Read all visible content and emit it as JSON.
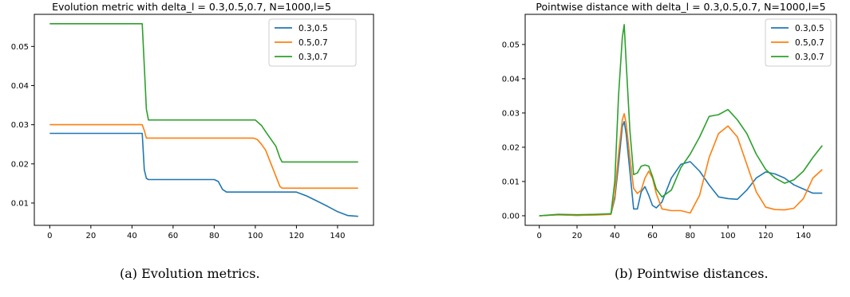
{
  "colors": {
    "series": [
      "#1f77b4",
      "#ff7f0e",
      "#2ca02c"
    ],
    "axis": "#000000",
    "legend_border": "#cccccc"
  },
  "captions": {
    "a": "(a) Evolution metrics.",
    "b": "(b) Pointwise distances."
  },
  "chart_data": [
    {
      "type": "line",
      "title": "Evolution metric with delta_l = 0.3,0.5,0.7, N=1000,l=5",
      "xlabel": "",
      "ylabel": "",
      "xlim": [
        -7.5,
        157.5
      ],
      "ylim": [
        0.0043,
        0.0582
      ],
      "xticks": [
        0,
        20,
        40,
        60,
        80,
        100,
        120,
        140
      ],
      "xtick_labels": [
        "0",
        "20",
        "40",
        "60",
        "80",
        "100",
        "120",
        "140"
      ],
      "yticks": [
        0.01,
        0.02,
        0.03,
        0.04,
        0.05
      ],
      "ytick_labels": [
        "0.01",
        "0.02",
        "0.03",
        "0.04",
        "0.05"
      ],
      "grid": false,
      "legend": "top-right",
      "series": [
        {
          "name": "0.3,0.5",
          "x": [
            0,
            45,
            46,
            47,
            48,
            80,
            82,
            84,
            86,
            120,
            125,
            130,
            135,
            140,
            145,
            150
          ],
          "y": [
            0.0278,
            0.0278,
            0.0185,
            0.0163,
            0.016,
            0.016,
            0.0155,
            0.0135,
            0.0128,
            0.0128,
            0.0118,
            0.0105,
            0.0092,
            0.0078,
            0.0068,
            0.0066
          ]
        },
        {
          "name": "0.5,0.7",
          "x": [
            0,
            45,
            46,
            47,
            99,
            101,
            103,
            105,
            112,
            113,
            150
          ],
          "y": [
            0.03,
            0.03,
            0.0285,
            0.0266,
            0.0266,
            0.0262,
            0.025,
            0.0235,
            0.0142,
            0.0138,
            0.0138
          ]
        },
        {
          "name": "0.3,0.7",
          "x": [
            0,
            45,
            46,
            47,
            48,
            100,
            103,
            106,
            110,
            112,
            113,
            150
          ],
          "y": [
            0.0558,
            0.0558,
            0.045,
            0.034,
            0.0312,
            0.0312,
            0.0298,
            0.0275,
            0.0245,
            0.0215,
            0.0205,
            0.0205
          ]
        }
      ]
    },
    {
      "type": "line",
      "title": "Pointwise distance with delta_l = 0.3,0.5,0.7, N=1000,l=5",
      "xlabel": "",
      "ylabel": "",
      "xlim": [
        -7.5,
        157.5
      ],
      "ylim": [
        -0.0028,
        0.0588
      ],
      "xticks": [
        0,
        20,
        40,
        60,
        80,
        100,
        120,
        140
      ],
      "xtick_labels": [
        "0",
        "20",
        "40",
        "60",
        "80",
        "100",
        "120",
        "140"
      ],
      "yticks": [
        0.0,
        0.01,
        0.02,
        0.03,
        0.04,
        0.05
      ],
      "ytick_labels": [
        "0.00",
        "0.01",
        "0.02",
        "0.03",
        "0.04",
        "0.05"
      ],
      "grid": false,
      "legend": "top-right",
      "series": [
        {
          "name": "0.3,0.5",
          "x": [
            0,
            10,
            20,
            30,
            38,
            40,
            42,
            44,
            45,
            46,
            48,
            50,
            52,
            54,
            56,
            58,
            60,
            62,
            65,
            70,
            75,
            80,
            85,
            90,
            95,
            100,
            105,
            110,
            115,
            120,
            125,
            130,
            135,
            140,
            145,
            150
          ],
          "y": [
            0.0,
            0.0003,
            0.0001,
            0.0003,
            0.0005,
            0.005,
            0.015,
            0.026,
            0.0275,
            0.024,
            0.013,
            0.002,
            0.002,
            0.007,
            0.0085,
            0.006,
            0.003,
            0.0023,
            0.004,
            0.011,
            0.015,
            0.0158,
            0.013,
            0.009,
            0.0055,
            0.005,
            0.0048,
            0.0075,
            0.011,
            0.0128,
            0.0122,
            0.011,
            0.009,
            0.0078,
            0.0066,
            0.0066
          ]
        },
        {
          "name": "0.5,0.7",
          "x": [
            0,
            10,
            20,
            30,
            38,
            40,
            42,
            44,
            45,
            46,
            48,
            50,
            52,
            54,
            56,
            58,
            60,
            62,
            65,
            70,
            75,
            80,
            85,
            90,
            95,
            100,
            105,
            110,
            115,
            120,
            125,
            130,
            135,
            140,
            145,
            150
          ],
          "y": [
            0.0,
            0.0003,
            0.0001,
            0.0002,
            0.0004,
            0.006,
            0.018,
            0.028,
            0.0298,
            0.027,
            0.017,
            0.008,
            0.0065,
            0.0075,
            0.011,
            0.013,
            0.011,
            0.0065,
            0.002,
            0.0015,
            0.0015,
            0.0008,
            0.006,
            0.017,
            0.024,
            0.0262,
            0.023,
            0.015,
            0.007,
            0.0025,
            0.0018,
            0.0017,
            0.0022,
            0.005,
            0.011,
            0.0135
          ]
        },
        {
          "name": "0.3,0.7",
          "x": [
            0,
            10,
            20,
            30,
            38,
            40,
            42,
            44,
            45,
            46,
            48,
            50,
            52,
            54,
            56,
            58,
            60,
            62,
            65,
            70,
            75,
            80,
            85,
            90,
            95,
            100,
            105,
            110,
            115,
            120,
            125,
            130,
            135,
            140,
            145,
            150
          ],
          "y": [
            0.0,
            0.0004,
            0.0003,
            0.0004,
            0.0006,
            0.01,
            0.035,
            0.052,
            0.0558,
            0.045,
            0.025,
            0.012,
            0.0125,
            0.0145,
            0.0148,
            0.0145,
            0.0115,
            0.0078,
            0.0055,
            0.0075,
            0.014,
            0.018,
            0.023,
            0.029,
            0.0295,
            0.031,
            0.028,
            0.024,
            0.018,
            0.0135,
            0.011,
            0.0095,
            0.0105,
            0.013,
            0.017,
            0.0205
          ]
        }
      ]
    }
  ]
}
